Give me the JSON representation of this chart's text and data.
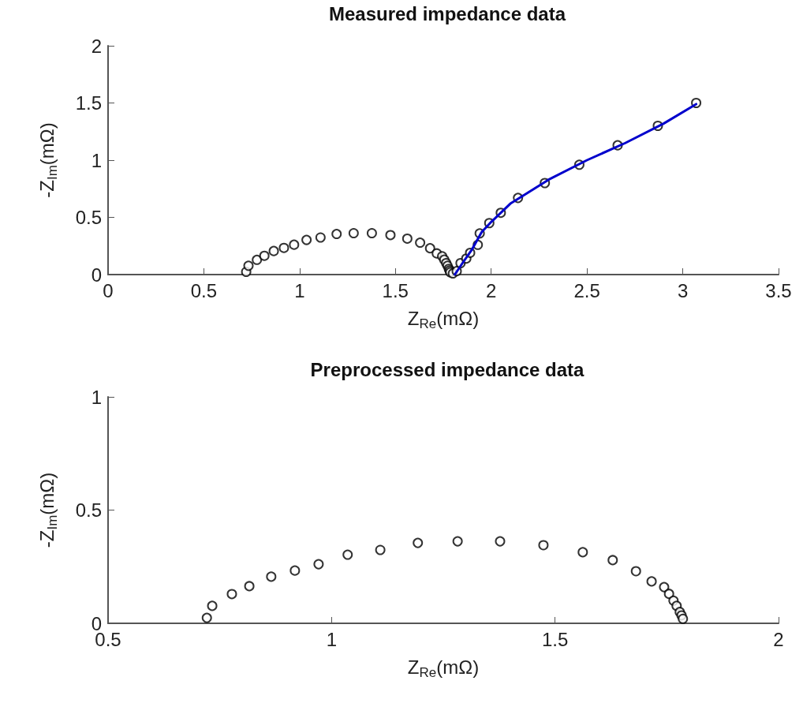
{
  "chart_data": [
    {
      "type": "scatter",
      "title": "Measured impedance data",
      "xlabel": "Z$_{Re}$(mΩ)",
      "ylabel": "-Z$_{Im}$(mΩ)",
      "xlim": [
        0,
        3.5
      ],
      "xticks": [
        0,
        0.5,
        1,
        1.5,
        2,
        2.5,
        3,
        3.5
      ],
      "ylim": [
        0,
        2
      ],
      "yticks": [
        0,
        0.5,
        1,
        1.5,
        2
      ],
      "grid": false,
      "marker": "circle",
      "series": [
        {
          "color": "#000000",
          "x": [
            0.721,
            0.733,
            0.777,
            0.816,
            0.865,
            0.918,
            0.971,
            1.036,
            1.109,
            1.193,
            1.282,
            1.377,
            1.474,
            1.562,
            1.629,
            1.681,
            1.716,
            1.744,
            1.755,
            1.765,
            1.772,
            1.779,
            1.783,
            1.786,
            1.8,
            1.82,
            1.84,
            1.87,
            1.89,
            1.93,
            1.94,
            1.99,
            2.05,
            2.14,
            2.28,
            2.46,
            2.66,
            2.87,
            3.07
          ],
          "values": [
            0.024,
            0.077,
            0.129,
            0.164,
            0.206,
            0.233,
            0.261,
            0.303,
            0.324,
            0.355,
            0.362,
            0.362,
            0.345,
            0.314,
            0.279,
            0.23,
            0.185,
            0.16,
            0.13,
            0.1,
            0.077,
            0.05,
            0.035,
            0.02,
            0.01,
            0.03,
            0.1,
            0.14,
            0.19,
            0.26,
            0.36,
            0.45,
            0.54,
            0.67,
            0.8,
            0.96,
            1.13,
            1.3,
            1.5
          ]
        },
        {
          "type": "line",
          "color": "#0000cc",
          "marker": "none",
          "line_style": "solid",
          "x": [
            1.81,
            1.85,
            1.9,
            1.95,
            2.0,
            2.1,
            2.3,
            2.5,
            2.7,
            2.9,
            3.07
          ],
          "values": [
            0,
            0.1,
            0.22,
            0.37,
            0.46,
            0.62,
            0.83,
            1.0,
            1.15,
            1.32,
            1.49
          ]
        }
      ]
    },
    {
      "type": "scatter",
      "title": "Preprocessed impedance data",
      "xlabel": "Z$_{Re}$(mΩ)",
      "ylabel": "-Z$_{Im}$(mΩ)",
      "xlim": [
        0.5,
        2
      ],
      "xticks": [
        0.5,
        1,
        1.5,
        2
      ],
      "ylim": [
        0,
        1
      ],
      "yticks": [
        0,
        0.5,
        1
      ],
      "grid": false,
      "marker": "circle",
      "series": [
        {
          "color": "#000000",
          "x": [
            0.721,
            0.733,
            0.777,
            0.816,
            0.865,
            0.918,
            0.971,
            1.036,
            1.109,
            1.193,
            1.282,
            1.377,
            1.474,
            1.562,
            1.629,
            1.681,
            1.716,
            1.744,
            1.755,
            1.765,
            1.772,
            1.779,
            1.783,
            1.786
          ],
          "values": [
            0.024,
            0.077,
            0.129,
            0.164,
            0.206,
            0.233,
            0.261,
            0.303,
            0.324,
            0.355,
            0.362,
            0.362,
            0.345,
            0.314,
            0.279,
            0.23,
            0.185,
            0.16,
            0.13,
            0.1,
            0.077,
            0.05,
            0.035,
            0.02
          ]
        }
      ]
    }
  ]
}
